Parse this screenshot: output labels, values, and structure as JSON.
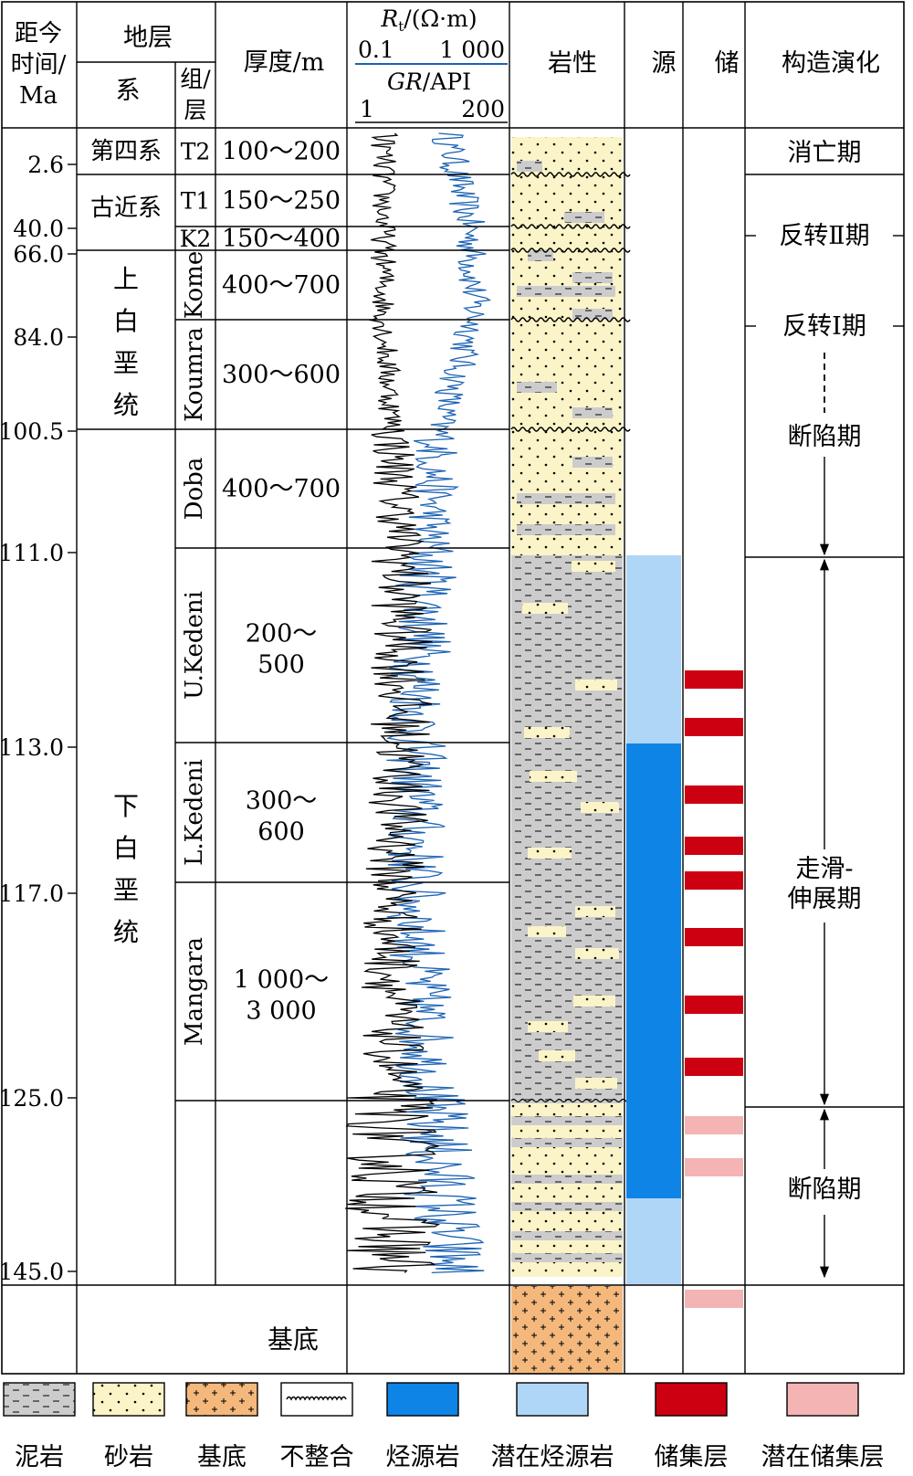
{
  "headers": {
    "age_l1": "距今",
    "age_l2": "时间/",
    "age_l3": "Ma",
    "strata": "地层",
    "system": "系",
    "formation_l1": "组/",
    "formation_l2": "层",
    "thickness": "厚度/m",
    "rt_label": "R",
    "rt_sub": "t",
    "rt_unit": "/(Ω·m)",
    "rt_min": "0.1",
    "rt_max": "1 000",
    "gr_label": "GR",
    "gr_unit": "/API",
    "gr_min": "1",
    "gr_max": "200",
    "lithology": "岩性",
    "source": "源",
    "reservoir": "储",
    "tectonic": "构造演化"
  },
  "age_ticks": [
    "2.6",
    "40.0",
    "66.0",
    "84.0",
    "100.5",
    "111.0",
    "113.0",
    "117.0",
    "125.0",
    "145.0"
  ],
  "systems": [
    {
      "label": "第四系"
    },
    {
      "label": "古近系"
    },
    {
      "label": "上白垩统",
      "chars": [
        "上",
        "白",
        "垩",
        "统"
      ]
    },
    {
      "label": "下白垩统",
      "chars": [
        "下",
        "白",
        "垩",
        "统"
      ]
    },
    {
      "label": "基底"
    }
  ],
  "formations": [
    {
      "name": "T2",
      "thickness": "100～200",
      "rotated": false
    },
    {
      "name": "T1",
      "thickness": "150～250",
      "rotated": false
    },
    {
      "name": "K2",
      "thickness": "150～400",
      "rotated": false
    },
    {
      "name": "Kome",
      "thickness": "400～700",
      "rotated": true
    },
    {
      "name": "Koumra",
      "thickness": "300～600",
      "rotated": true
    },
    {
      "name": "Doba",
      "thickness": "400～700",
      "rotated": true
    },
    {
      "name": "U.Kedeni",
      "thickness": [
        "200～",
        "500"
      ],
      "rotated": true
    },
    {
      "name": "L.Kedeni",
      "thickness": [
        "300～",
        "600"
      ],
      "rotated": true
    },
    {
      "name": "Mangara",
      "thickness": [
        "1 000～",
        "3 000"
      ],
      "rotated": true
    }
  ],
  "tectonic_phases": [
    {
      "label": "消亡期"
    },
    {
      "label": "反转Ⅱ期"
    },
    {
      "label": "反转Ⅰ期"
    },
    {
      "label": "断陷期"
    },
    {
      "label": "走滑-伸展期",
      "lines": [
        "走滑-",
        "伸展期"
      ]
    },
    {
      "label": "断陷期"
    }
  ],
  "legend": [
    {
      "label": "泥岩",
      "kind": "mudstone"
    },
    {
      "label": "砂岩",
      "kind": "sandstone"
    },
    {
      "label": "基底",
      "kind": "basement"
    },
    {
      "label": "不整合",
      "kind": "unconformity"
    },
    {
      "label": "烃源岩",
      "kind": "source"
    },
    {
      "label": "潜在烃源岩",
      "kind": "potential-source"
    },
    {
      "label": "储集层",
      "kind": "reservoir"
    },
    {
      "label": "潜在储集层",
      "kind": "potential-reservoir"
    }
  ],
  "colors": {
    "sand": "#FBF4C8",
    "mud": "#CCCCCC",
    "basement": "#F4B87C",
    "source": "#0E84E6",
    "potential_source": "#B0D6F7",
    "reservoir": "#CC0011",
    "potential_reservoir": "#F4B4B4",
    "gr_curve": "#1B62B4",
    "rt_curve": "#000000"
  }
}
